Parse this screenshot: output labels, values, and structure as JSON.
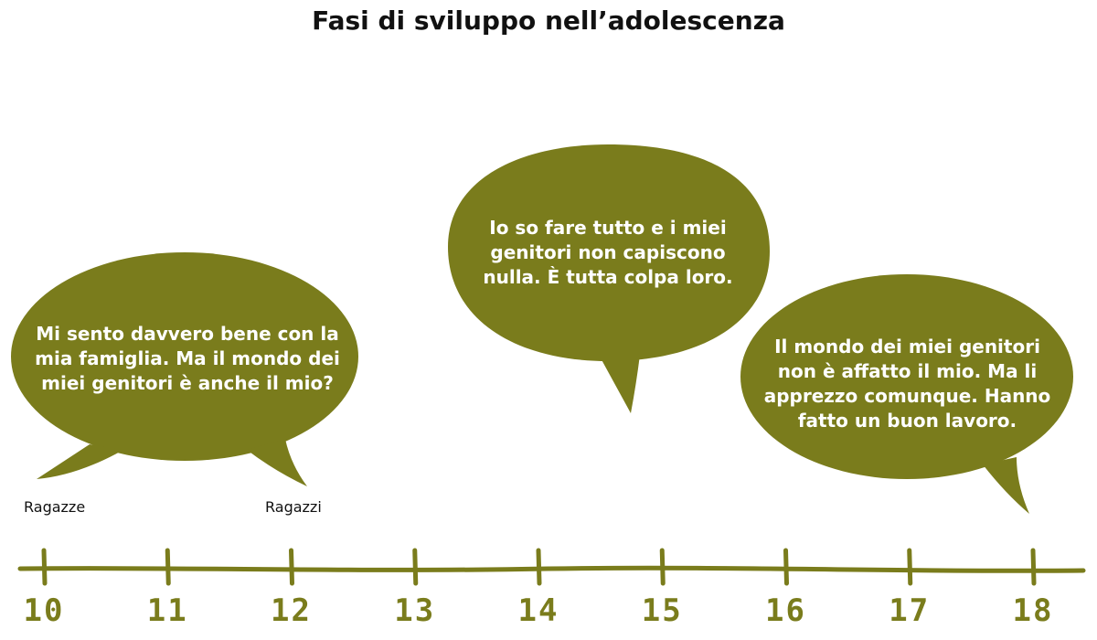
{
  "title": "Fasi di sviluppo nell’adolescenza",
  "colors": {
    "bubble": "#7a7c1c",
    "text_on_bubble": "#ffffff",
    "axis": "#7a7c1c"
  },
  "bubbles": [
    {
      "lines": [
        "Mi sento davvero bene con la",
        "mia famiglia. Ma il mondo dei",
        "miei genitori è anche il mio?"
      ]
    },
    {
      "lines": [
        "Io so fare tutto e i miei",
        "genitori non capiscono",
        "nulla. È tutta colpa loro."
      ]
    },
    {
      "lines": [
        "Il mondo dei miei genitori",
        "non è affatto il mio. Ma li",
        "apprezzo comunque. Hanno",
        "fatto un buon lavoro."
      ]
    }
  ],
  "labels": {
    "girls": "Ragazze",
    "boys": "Ragazzi"
  },
  "timeline": {
    "ticks": [
      "10",
      "11",
      "12",
      "13",
      "14",
      "15",
      "16",
      "17",
      "18"
    ]
  }
}
